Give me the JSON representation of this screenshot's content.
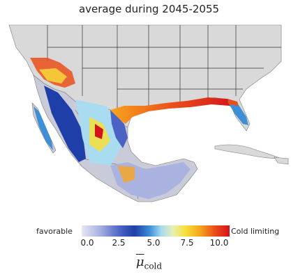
{
  "title": "average during 2045-2055",
  "legend": {
    "left_label": "favorable",
    "right_label": "Cold limiting",
    "ticks": [
      "0.0",
      "2.5",
      "5.0",
      "7.5",
      "10.0"
    ],
    "variable_symbol": "μ",
    "variable_subscript": "cold",
    "color_low": "#e6e8f6",
    "color_mid": "#3f8fd6",
    "color_high": "#d4121a"
  },
  "map": {
    "region": "southern United States, Mexico and Caribbean",
    "land_color": "#d9d9d9",
    "border_color": "#333333"
  }
}
